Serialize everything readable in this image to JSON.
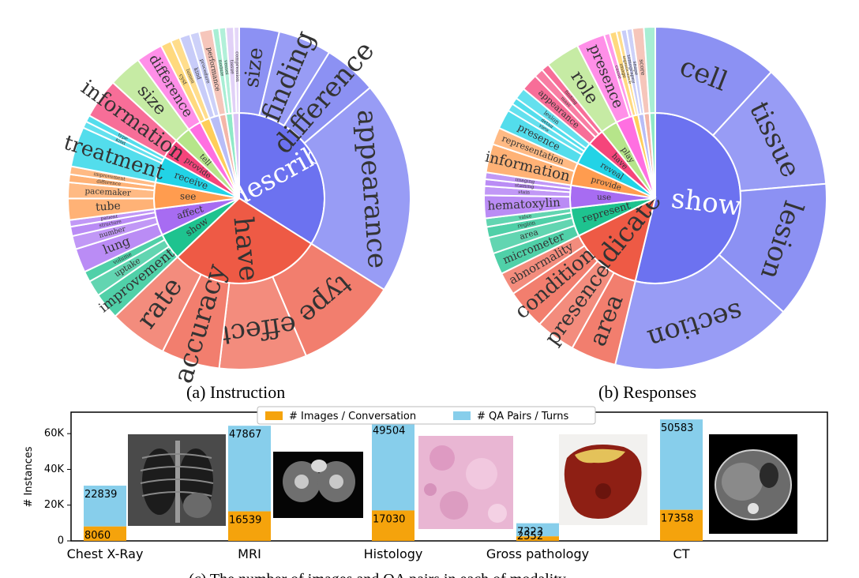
{
  "sunbursts": [
    {
      "caption": "(a) Instruction",
      "center": "",
      "inner": [
        {
          "label": "describe",
          "color": "#6C72F0",
          "value": 27
        },
        {
          "label": "have",
          "color": "#EE5A45",
          "value": 23
        },
        {
          "label": "show",
          "color": "#1EC38F",
          "value": 4
        },
        {
          "label": "affect",
          "color": "#A76CF2",
          "value": 4
        },
        {
          "label": "see",
          "color": "#FF9C4F",
          "value": 4
        },
        {
          "label": "receive",
          "color": "#22D3E6",
          "value": 4
        },
        {
          "label": "provide",
          "color": "#F5457B",
          "value": 3
        },
        {
          "label": "tell",
          "color": "#B6E58A",
          "value": 2.5
        },
        {
          "label": "explain",
          "color": "#FF6FE1",
          "value": 2
        },
        {
          "label": "undergo",
          "color": "#FFCE5A",
          "value": 1.5
        },
        {
          "label": "interpret",
          "color": "#B8BDF7",
          "value": 1.5
        },
        {
          "label": "surround",
          "color": "#F4B6A8",
          "value": 1
        },
        {
          "label": "affect",
          "color": "#8FE9C8",
          "value": 1
        },
        {
          "label": "",
          "color": "#D9C4F5",
          "value": 1
        }
      ],
      "outer": [
        {
          "parent": 0,
          "items": [
            {
              "label": "size",
              "value": 3
            },
            {
              "label": "finding",
              "value": 4
            },
            {
              "label": "difference",
              "value": 4
            },
            {
              "label": "appearance",
              "value": 16
            }
          ]
        },
        {
          "parent": 1,
          "items": [
            {
              "label": "type",
              "value": 7
            },
            {
              "label": "effect",
              "value": 6
            },
            {
              "label": "accuracy",
              "value": 4
            },
            {
              "label": "rate",
              "value": 4
            }
          ]
        },
        {
          "parent": 2,
          "items": [
            {
              "label": "improvement",
              "value": 2
            },
            {
              "label": "uptake",
              "value": 1.2
            },
            {
              "label": "volume",
              "value": 0.8
            }
          ]
        },
        {
          "parent": 3,
          "items": [
            {
              "label": "lung",
              "value": 1.8
            },
            {
              "label": "number",
              "value": 1
            },
            {
              "label": "structure",
              "value": 0.7
            },
            {
              "label": "patient",
              "value": 0.5
            }
          ]
        },
        {
          "parent": 4,
          "items": [
            {
              "label": "tube",
              "value": 1.6
            },
            {
              "label": "pacemaker",
              "value": 1.2
            },
            {
              "label": "difference",
              "value": 0.6
            },
            {
              "label": "improvement",
              "value": 0.6
            }
          ]
        },
        {
          "parent": 5,
          "items": [
            {
              "label": "treatment",
              "value": 3
            },
            {
              "label": "kind",
              "value": 0.5
            },
            {
              "label": "type",
              "value": 0.5
            }
          ]
        },
        {
          "parent": 6,
          "items": [
            {
              "label": "information",
              "value": 3
            }
          ]
        },
        {
          "parent": 7,
          "items": [
            {
              "label": "size",
              "value": 2.5
            }
          ]
        },
        {
          "parent": 8,
          "items": [
            {
              "label": "difference",
              "value": 2
            }
          ]
        },
        {
          "parent": 9,
          "items": [
            {
              "label": "cyst",
              "value": 0.8
            },
            {
              "label": "lumen",
              "value": 0.7
            }
          ]
        },
        {
          "parent": 10,
          "items": [
            {
              "label": "kind",
              "value": 0.8
            },
            {
              "label": "procedure",
              "value": 0.7
            }
          ]
        },
        {
          "parent": 11,
          "items": [
            {
              "label": "performance",
              "value": 1
            }
          ]
        },
        {
          "parent": 12,
          "items": [
            {
              "label": "nodule",
              "value": 0.5
            },
            {
              "label": "vessel",
              "value": 0.5
            }
          ]
        },
        {
          "parent": 13,
          "items": [
            {
              "label": "tissue",
              "value": 0.6
            },
            {
              "label": "compression",
              "value": 0.4
            }
          ]
        }
      ]
    },
    {
      "caption": "(b) Responses",
      "center": "",
      "inner": [
        {
          "label": "show",
          "color": "#6C72F0",
          "value": 50
        },
        {
          "label": "indicate",
          "color": "#EE5A45",
          "value": 13
        },
        {
          "label": "represent",
          "color": "#1EC38F",
          "value": 5
        },
        {
          "label": "use",
          "color": "#A76CF2",
          "value": 4
        },
        {
          "label": "provide",
          "color": "#FF9C4F",
          "value": 4
        },
        {
          "label": "reveal",
          "color": "#22D3E6",
          "value": 4
        },
        {
          "label": "have",
          "color": "#F5457B",
          "value": 3
        },
        {
          "label": "play",
          "color": "#B6E58A",
          "value": 3
        },
        {
          "label": "",
          "color": "#FF6FE1",
          "value": 3
        },
        {
          "label": "suggest",
          "color": "#FFCE5A",
          "value": 1
        },
        {
          "label": "include",
          "color": "#B8BDF7",
          "value": 1
        },
        {
          "label": "",
          "color": "#F4B6A8",
          "value": 1
        },
        {
          "label": "",
          "color": "#8FE9C8",
          "value": 1
        }
      ],
      "outer": [
        {
          "parent": 0,
          "items": [
            {
              "label": "cell",
              "value": 11
            },
            {
              "label": "tissue",
              "value": 11
            },
            {
              "label": "lesion",
              "value": 12
            },
            {
              "label": "section",
              "value": 16
            }
          ]
        },
        {
          "parent": 1,
          "items": [
            {
              "label": "area",
              "value": 4
            },
            {
              "label": "presence",
              "value": 3.5
            },
            {
              "label": "condition",
              "value": 3.5
            },
            {
              "label": "abnormality",
              "value": 2
            }
          ]
        },
        {
          "parent": 2,
          "items": [
            {
              "label": "micrometer",
              "value": 2
            },
            {
              "label": "area",
              "value": 1.5
            },
            {
              "label": "region",
              "value": 1
            },
            {
              "label": "value",
              "value": 0.8
            }
          ]
        },
        {
          "parent": 3,
          "items": [
            {
              "label": "hematoxylin",
              "value": 2
            },
            {
              "label": "stain",
              "value": 0.8
            },
            {
              "label": "staining",
              "value": 0.6
            },
            {
              "label": "imaging",
              "value": 0.6
            }
          ]
        },
        {
          "parent": 4,
          "items": [
            {
              "label": "information",
              "value": 2.5
            },
            {
              "label": "representation",
              "value": 1.5
            }
          ]
        },
        {
          "parent": 5,
          "items": [
            {
              "label": "presence",
              "value": 2
            },
            {
              "label": "view",
              "value": 0.8
            },
            {
              "label": "detail",
              "value": 0.7
            },
            {
              "label": "lesion",
              "value": 1.2
            }
          ]
        },
        {
          "parent": 6,
          "items": [
            {
              "label": "appearance",
              "value": 1.5
            },
            {
              "label": "mass",
              "value": 0.8
            },
            {
              "label": "finding",
              "value": 0.7
            }
          ]
        },
        {
          "parent": 7,
          "items": [
            {
              "label": "role",
              "value": 3
            }
          ]
        },
        {
          "parent": 8,
          "items": [
            {
              "label": "presence",
              "value": 2.5
            },
            {
              "label": "cause",
              "value": 0.5
            }
          ]
        },
        {
          "parent": 9,
          "items": [
            {
              "label": "image",
              "value": 0.6
            },
            {
              "label": "significance",
              "value": 0.4
            }
          ]
        },
        {
          "parent": 10,
          "items": [
            {
              "label": "tomography",
              "value": 0.5
            },
            {
              "label": "shape",
              "value": 0.5
            }
          ]
        },
        {
          "parent": 11,
          "items": [
            {
              "label": "score",
              "value": 1
            }
          ]
        },
        {
          "parent": 12,
          "items": [
            {
              "label": "",
              "value": 1
            }
          ]
        }
      ]
    }
  ],
  "chart_data": {
    "type": "bar",
    "categories": [
      "Chest X-Ray",
      "MRI",
      "Histology",
      "Gross pathology",
      "CT"
    ],
    "series": [
      {
        "name": "# Images / Conversation",
        "color": "#F5A30C",
        "values": [
          8060,
          16539,
          17030,
          2552,
          17358
        ]
      },
      {
        "name": "# QA Pairs / Turns",
        "color": "#87CEEB",
        "values": [
          22839,
          47867,
          49504,
          7323,
          50583
        ]
      }
    ],
    "ylabel": "# Instances",
    "yticks": [
      0,
      20000,
      40000,
      60000
    ],
    "ytick_labels": [
      "0",
      "20K",
      "40K",
      "60K"
    ],
    "ylim": [
      0,
      72000
    ],
    "legend": "top-center",
    "bottom_caption": "(c) The number of images and QA pairs in each of modality"
  }
}
